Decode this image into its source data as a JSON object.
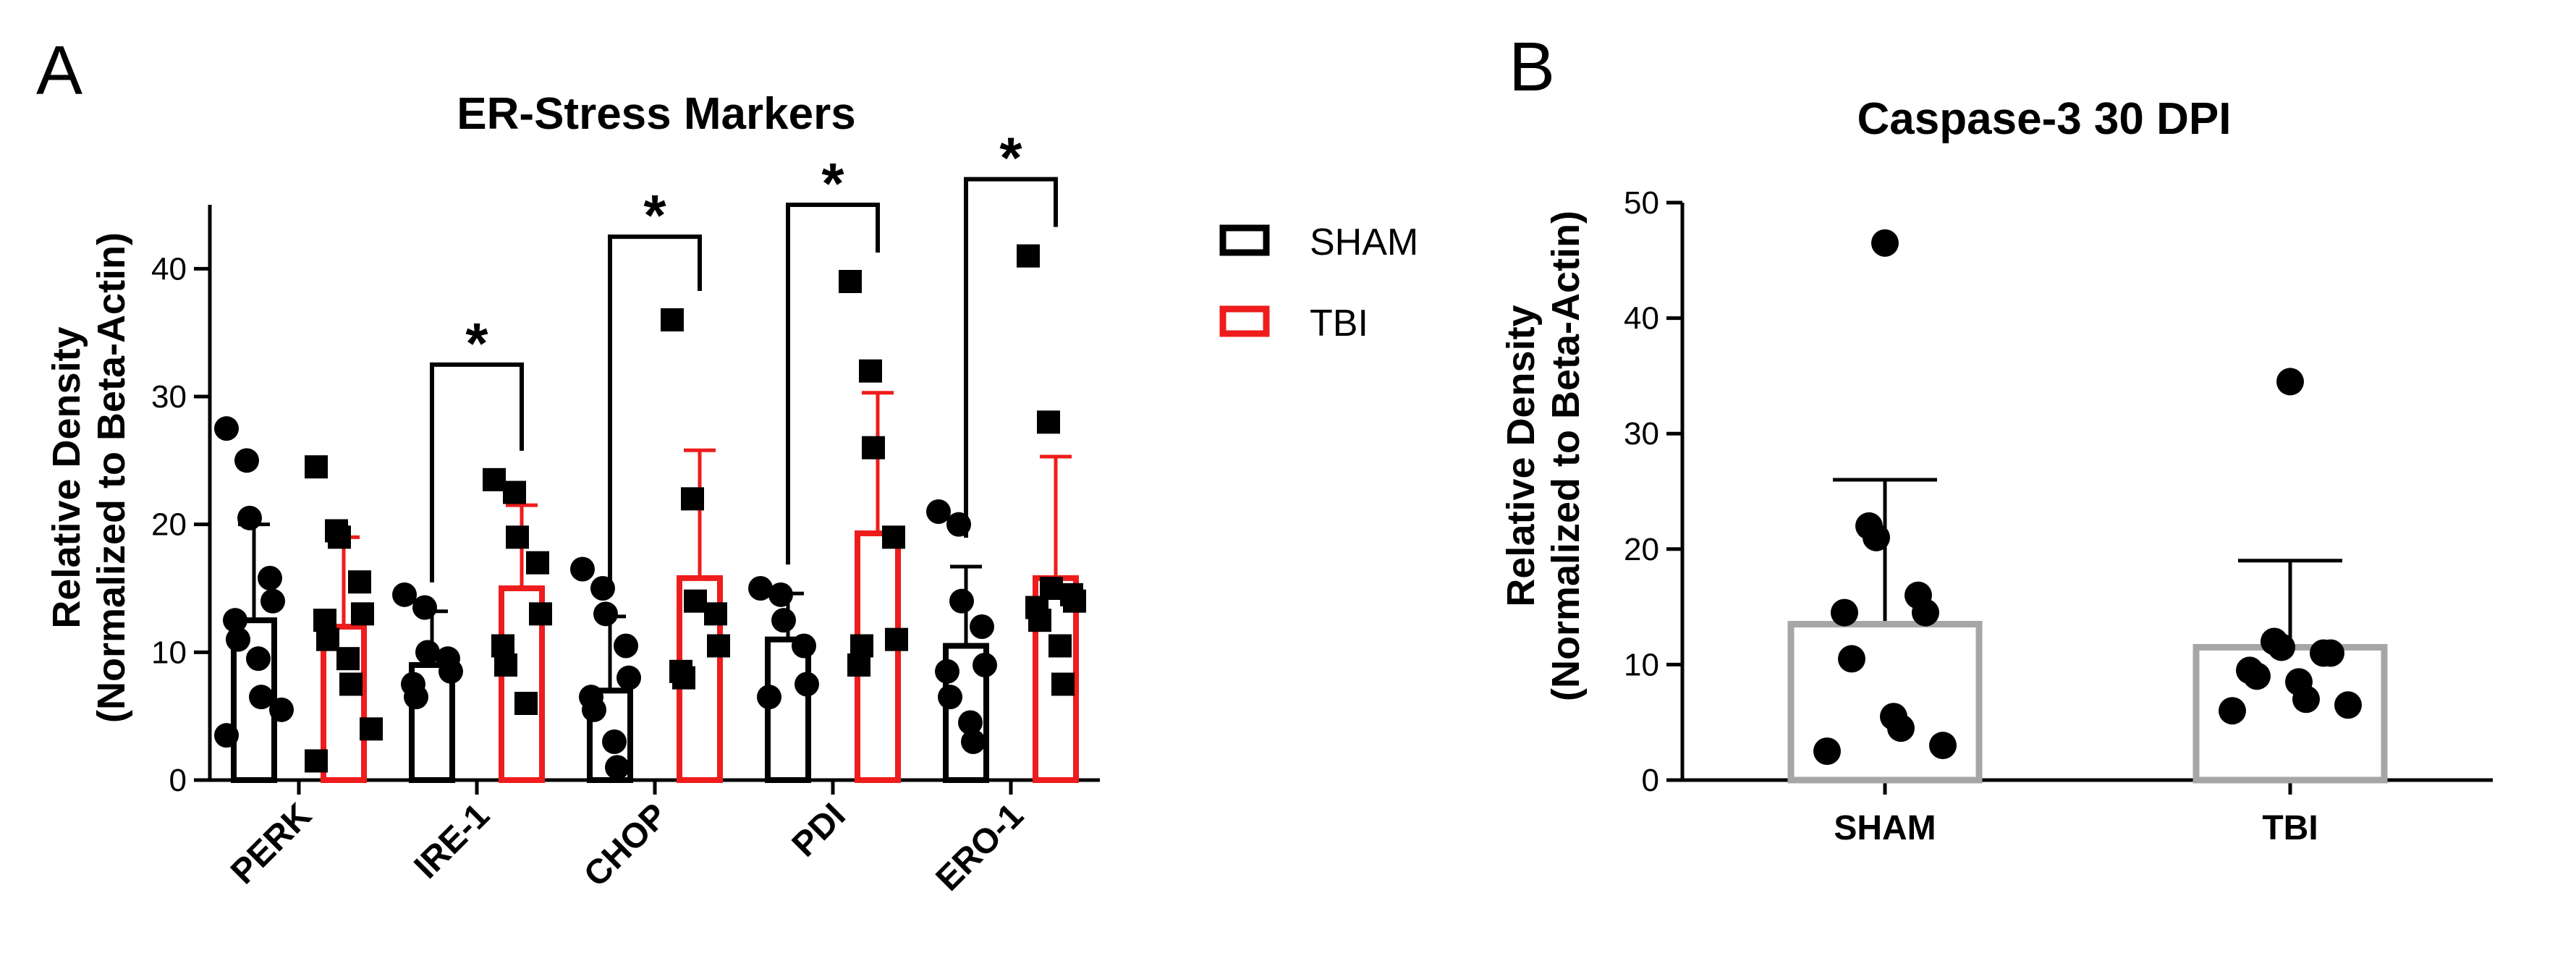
{
  "colors": {
    "sham": "#000000",
    "tbi": "#ee1c1c",
    "caspase_bar": "#a6a6a6"
  },
  "chart_data": [
    {
      "panel": "A",
      "type": "bar",
      "title": "ER-Stress Markers",
      "ylabel_line1": "Relative Density",
      "ylabel_line2": "(Normalized to Beta-Actin)",
      "ylim": [
        0,
        45
      ],
      "yticks": [
        0,
        10,
        20,
        30,
        40
      ],
      "categories": [
        "PERK",
        "IRE-1",
        "CHOP",
        "PDI",
        "ERO-1"
      ],
      "legend": {
        "position": "right",
        "entries": [
          "SHAM",
          "TBI"
        ]
      },
      "series": [
        {
          "name": "SHAM",
          "marker": "circle",
          "means": [
            12.5,
            9.0,
            7.0,
            11.0,
            10.5
          ],
          "sd": [
            7.5,
            4.2,
            5.8,
            3.6,
            6.2
          ],
          "points": [
            [
              27.5,
              25.0,
              20.5,
              15.8,
              14.0,
              12.5,
              11.0,
              9.5,
              6.5,
              5.5,
              3.5
            ],
            [
              14.5,
              13.5,
              10.0,
              9.5,
              8.5,
              7.5,
              6.5
            ],
            [
              16.5,
              15.0,
              13.0,
              10.5,
              8.0,
              6.5,
              5.5,
              3.0,
              1.0
            ],
            [
              15.0,
              14.5,
              12.5,
              10.5,
              7.5,
              6.5
            ],
            [
              21.0,
              20.0,
              14.0,
              12.0,
              9.0,
              8.5,
              6.5,
              4.5,
              3.0
            ]
          ]
        },
        {
          "name": "TBI",
          "marker": "square",
          "means": [
            12.0,
            15.0,
            15.8,
            19.3,
            15.8
          ],
          "sd": [
            7.0,
            6.5,
            10.0,
            11.0,
            9.5
          ],
          "points": [
            [
              24.5,
              19.5,
              19.0,
              15.5,
              13.0,
              12.5,
              11.0,
              9.5,
              7.5,
              4.0,
              1.5
            ],
            [
              23.5,
              22.5,
              19.0,
              17.0,
              13.0,
              10.5,
              9.0,
              6.0
            ],
            [
              36.0,
              22.0,
              14.0,
              13.0,
              10.5,
              8.5,
              8.0
            ],
            [
              39.0,
              32.0,
              26.0,
              19.0,
              11.0,
              9.0,
              10.5
            ],
            [
              41.0,
              28.0,
              15.0,
              14.5,
              14.0,
              13.5,
              12.5,
              10.5,
              7.5
            ]
          ]
        }
      ],
      "significance": [
        {
          "category": "IRE-1",
          "label": "*",
          "y": 32.5
        },
        {
          "category": "CHOP",
          "label": "*",
          "y": 42.5
        },
        {
          "category": "PDI",
          "label": "*",
          "y": 45.0
        },
        {
          "category": "ERO-1",
          "label": "*",
          "y": 47.0
        }
      ]
    },
    {
      "panel": "B",
      "type": "bar",
      "title": "Caspase-3 30 DPI",
      "ylabel_line1": "Relative Density",
      "ylabel_line2": "(Normalized to Beta-Actin)",
      "ylim": [
        0,
        50
      ],
      "yticks": [
        0,
        10,
        20,
        30,
        40,
        50
      ],
      "categories": [
        "SHAM",
        "TBI"
      ],
      "means": [
        13.5,
        11.5
      ],
      "sd": [
        12.5,
        7.5
      ],
      "points": [
        [
          46.5,
          22.0,
          21.0,
          16.0,
          14.5,
          14.5,
          10.5,
          5.5,
          4.5,
          3.0,
          2.5
        ],
        [
          34.5,
          12.0,
          11.5,
          11.0,
          11.0,
          9.5,
          9.0,
          8.5,
          7.0,
          6.5,
          6.0
        ]
      ]
    }
  ]
}
